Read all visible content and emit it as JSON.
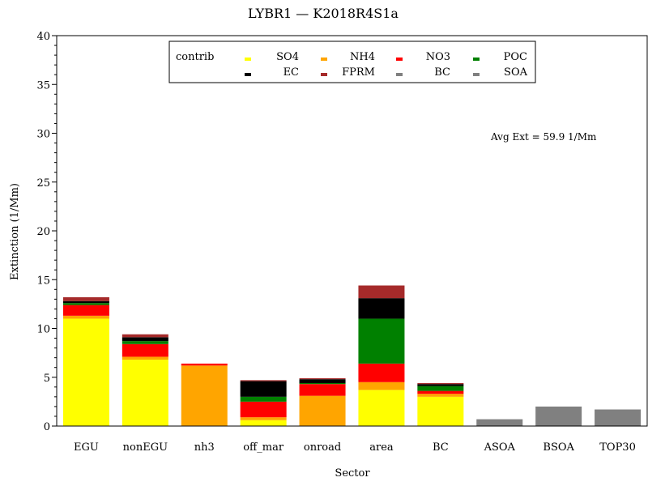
{
  "chart_data": {
    "type": "bar",
    "stacked": true,
    "title": "LYBR1 — K2018R4S1a",
    "xlabel": "Sector",
    "ylabel": "Extinction (1/Mm)",
    "ylim": [
      0,
      40
    ],
    "yticks": [
      "0",
      "5",
      "10",
      "15",
      "20",
      "25",
      "30",
      "35",
      "40"
    ],
    "grid": false,
    "legend": {
      "title": "contrib",
      "placement": "top-center",
      "entries": [
        {
          "name": "SO4",
          "color": "#ffff00"
        },
        {
          "name": "NH4",
          "color": "#ffa500"
        },
        {
          "name": "NO3",
          "color": "#ff0000"
        },
        {
          "name": "POC",
          "color": "#008000"
        },
        {
          "name": "EC",
          "color": "#000000"
        },
        {
          "name": "FPRM",
          "color": "#a52a2a"
        },
        {
          "name": "BC",
          "color": "#808080"
        },
        {
          "name": "SOA",
          "color": "#808080"
        }
      ]
    },
    "annotation": "Avg Ext =  59.9 1/Mm",
    "categories": [
      "EGU",
      "nonEGU",
      "nh3",
      "off_mar",
      "onroad",
      "area",
      "BC",
      "ASOA",
      "BSOA",
      "TOP30"
    ],
    "series": [
      {
        "name": "SO4",
        "color": "#ffff00",
        "values": [
          11.0,
          6.8,
          0.0,
          0.6,
          0.0,
          3.7,
          3.0,
          0.0,
          0.0,
          0.0
        ]
      },
      {
        "name": "NH4",
        "color": "#ffa500",
        "values": [
          0.3,
          0.3,
          6.2,
          0.3,
          3.1,
          0.8,
          0.3,
          0.0,
          0.0,
          0.0
        ]
      },
      {
        "name": "NO3",
        "color": "#ff0000",
        "values": [
          1.1,
          1.3,
          0.2,
          1.6,
          1.2,
          1.9,
          0.3,
          0.0,
          0.0,
          0.0
        ]
      },
      {
        "name": "POC",
        "color": "#008000",
        "values": [
          0.2,
          0.3,
          0.0,
          0.5,
          0.1,
          4.6,
          0.5,
          0.0,
          0.0,
          0.0
        ]
      },
      {
        "name": "EC",
        "color": "#000000",
        "values": [
          0.2,
          0.4,
          0.0,
          1.6,
          0.4,
          2.1,
          0.2,
          0.0,
          0.0,
          0.0
        ]
      },
      {
        "name": "FPRM",
        "color": "#a52a2a",
        "values": [
          0.4,
          0.3,
          0.0,
          0.1,
          0.1,
          1.3,
          0.1,
          0.0,
          0.0,
          0.0
        ]
      },
      {
        "name": "BC",
        "color": "#808080",
        "values": [
          0.0,
          0.0,
          0.0,
          0.0,
          0.0,
          0.0,
          0.0,
          0.0,
          0.0,
          0.0
        ]
      },
      {
        "name": "SOA",
        "color": "#808080",
        "values": [
          0.0,
          0.0,
          0.0,
          0.0,
          0.0,
          0.0,
          0.0,
          0.7,
          2.0,
          1.7
        ]
      }
    ]
  }
}
